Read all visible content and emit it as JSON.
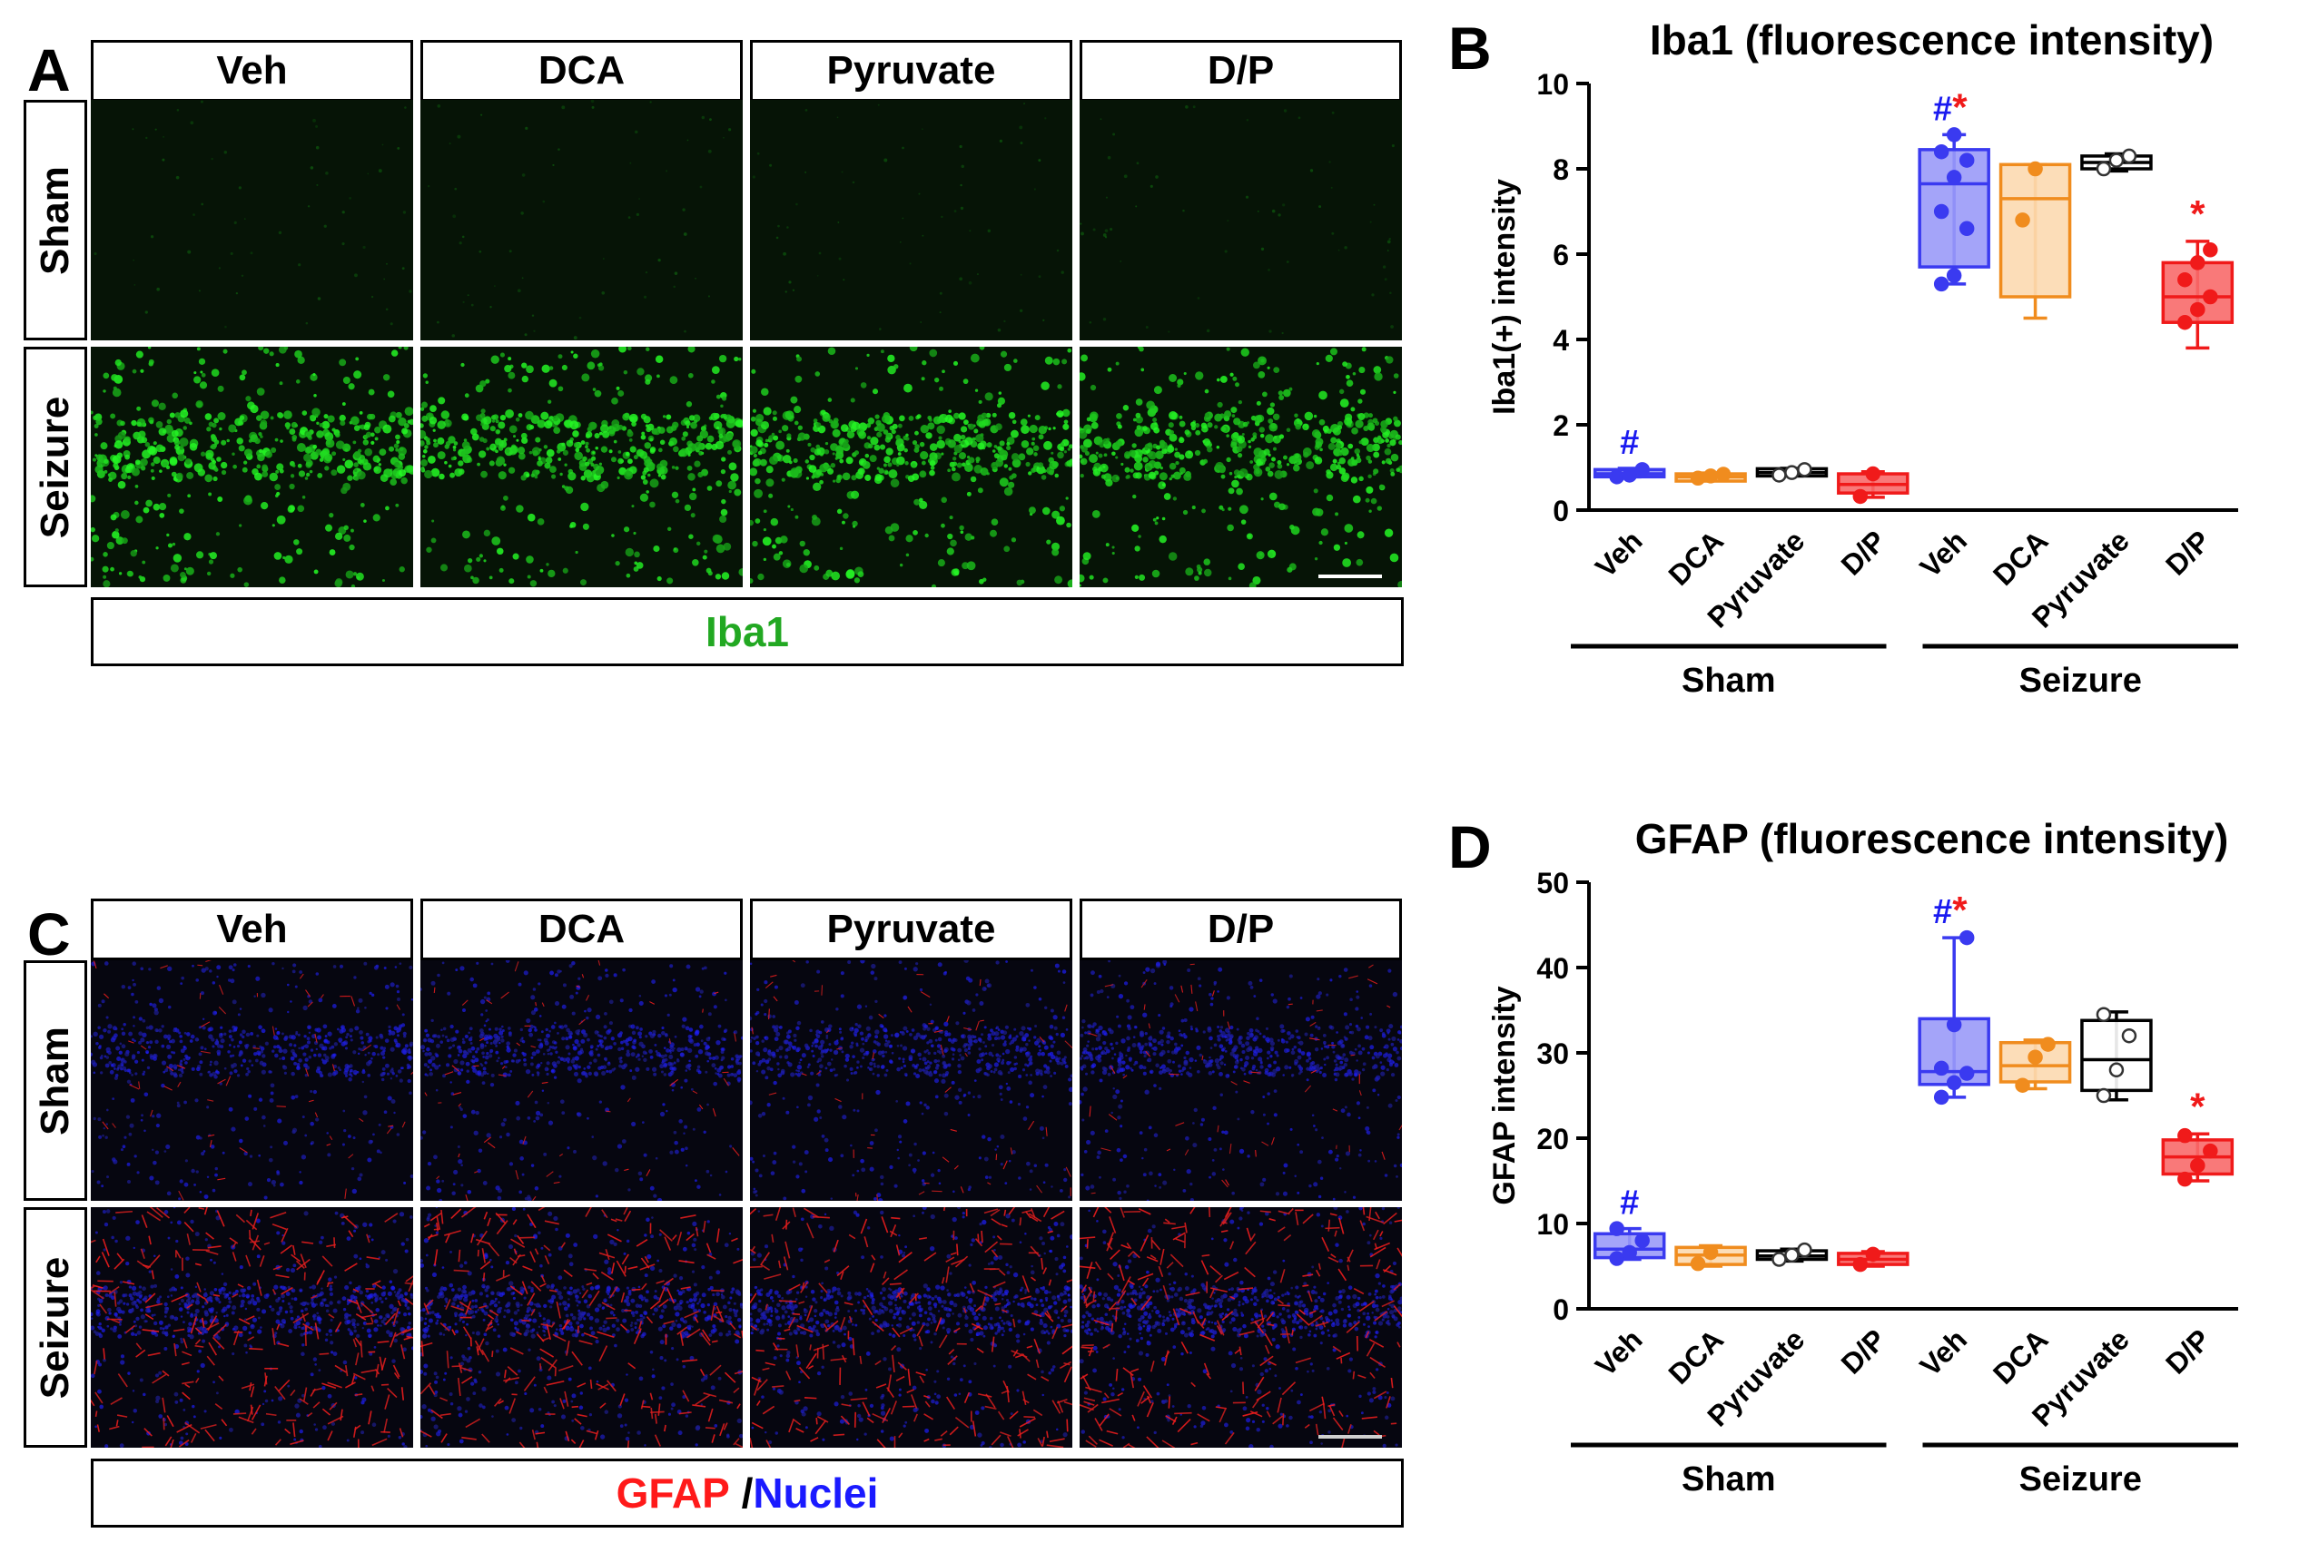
{
  "panel_labels": {
    "a": "A",
    "b": "B",
    "c": "C",
    "d": "D"
  },
  "groups": [
    "Veh",
    "DCA",
    "Pyruvate",
    "D/P"
  ],
  "rows": [
    "Sham",
    "Seizure"
  ],
  "iba1_footer": "Iba1",
  "gfap_footer": {
    "marker": "GFAP",
    "separator": " /",
    "counterstain": "Nuclei"
  },
  "colors": {
    "iba1_stain": "#22c422",
    "gfap_stain": "#ff2a2a",
    "nuclei_stain": "#2a2aff",
    "veh": "#3a3af0",
    "dca": "#f08c1e",
    "pyruvate": "#000000",
    "dp": "#f01a1a",
    "hash_color": "#1a1af0",
    "star_color": "#f01a1a"
  },
  "chart_data": [
    {
      "type": "box",
      "title": "Iba1  (fluorescence intensity)",
      "ylabel": "Iba1(+) intensity",
      "ylim": [
        0,
        10
      ],
      "yticks": [
        0,
        2,
        4,
        6,
        8,
        10
      ],
      "categories": [
        "Veh",
        "DCA",
        "Pyruvate",
        "D/P",
        "Veh",
        "DCA",
        "Pyruvate",
        "D/P"
      ],
      "group_labels": [
        "Sham",
        "Seizure"
      ],
      "boxes": [
        {
          "series": "veh",
          "min": 0.78,
          "q1": 0.78,
          "median": 0.85,
          "q3": 0.95,
          "max": 0.98,
          "points": [
            0.78,
            0.82,
            0.95
          ]
        },
        {
          "series": "dca",
          "min": 0.72,
          "q1": 0.72,
          "median": 0.78,
          "q3": 0.85,
          "max": 0.87,
          "points": [
            0.75,
            0.8,
            0.84
          ]
        },
        {
          "series": "pyruvate",
          "min": 0.8,
          "q1": 0.8,
          "median": 0.88,
          "q3": 0.97,
          "max": 0.98,
          "points": [
            0.82,
            0.88,
            0.95
          ]
        },
        {
          "series": "dp",
          "min": 0.3,
          "q1": 0.4,
          "median": 0.6,
          "q3": 0.85,
          "max": 0.9,
          "points": [
            0.32,
            0.85
          ]
        },
        {
          "series": "veh",
          "min": 5.3,
          "q1": 5.7,
          "median": 7.65,
          "q3": 8.45,
          "max": 8.8,
          "points": [
            5.3,
            5.5,
            6.6,
            7.0,
            7.8,
            8.2,
            8.4,
            8.8
          ]
        },
        {
          "series": "dca",
          "min": 4.5,
          "q1": 5.0,
          "median": 7.3,
          "q3": 8.1,
          "max": 8.1,
          "points": [
            6.8,
            8.0
          ]
        },
        {
          "series": "pyruvate",
          "min": 7.95,
          "q1": 8.0,
          "median": 8.15,
          "q3": 8.3,
          "max": 8.35,
          "points": [
            8.0,
            8.2,
            8.3
          ]
        },
        {
          "series": "dp",
          "min": 3.8,
          "q1": 4.4,
          "median": 5.0,
          "q3": 5.8,
          "max": 6.3,
          "points": [
            4.4,
            4.7,
            5.0,
            5.4,
            5.8,
            6.1
          ]
        }
      ],
      "annotations": [
        {
          "box": 0,
          "hash": "#",
          "star": ""
        },
        {
          "box": 4,
          "hash": "#",
          "star": "*"
        },
        {
          "box": 7,
          "hash": "",
          "star": "*"
        }
      ]
    },
    {
      "type": "box",
      "title": "GFAP  (fluorescence intensity)",
      "ylabel": "GFAP intensity",
      "ylim": [
        0,
        50
      ],
      "yticks": [
        0,
        10,
        20,
        30,
        40,
        50
      ],
      "categories": [
        "Veh",
        "DCA",
        "Pyruvate",
        "D/P",
        "Veh",
        "DCA",
        "Pyruvate",
        "D/P"
      ],
      "group_labels": [
        "Sham",
        "Seizure"
      ],
      "boxes": [
        {
          "series": "veh",
          "min": 5.8,
          "q1": 6.0,
          "median": 7.0,
          "q3": 8.8,
          "max": 9.4,
          "points": [
            5.9,
            6.6,
            8.0,
            9.4
          ]
        },
        {
          "series": "dca",
          "min": 5.0,
          "q1": 5.2,
          "median": 6.3,
          "q3": 7.2,
          "max": 7.4,
          "points": [
            5.3,
            6.6
          ]
        },
        {
          "series": "pyruvate",
          "min": 5.6,
          "q1": 5.8,
          "median": 6.2,
          "q3": 6.8,
          "max": 7.0,
          "points": [
            5.8,
            6.3,
            6.9
          ]
        },
        {
          "series": "dp",
          "min": 5.0,
          "q1": 5.2,
          "median": 5.8,
          "q3": 6.5,
          "max": 6.7,
          "points": [
            5.2,
            6.4
          ]
        },
        {
          "series": "veh",
          "min": 24.8,
          "q1": 26.3,
          "median": 27.8,
          "q3": 34.0,
          "max": 43.5,
          "points": [
            24.8,
            26.5,
            27.6,
            28.2,
            33.3,
            43.5
          ]
        },
        {
          "series": "dca",
          "min": 25.8,
          "q1": 26.6,
          "median": 28.5,
          "q3": 31.2,
          "max": 31.5,
          "points": [
            26.2,
            29.5,
            31.0
          ]
        },
        {
          "series": "pyruvate",
          "min": 24.5,
          "q1": 25.6,
          "median": 29.2,
          "q3": 33.8,
          "max": 34.8,
          "points": [
            25.0,
            28.0,
            32.0,
            34.5
          ]
        },
        {
          "series": "dp",
          "min": 15.0,
          "q1": 15.8,
          "median": 17.8,
          "q3": 19.8,
          "max": 20.5,
          "points": [
            15.2,
            16.8,
            18.5,
            20.3
          ]
        }
      ],
      "annotations": [
        {
          "box": 0,
          "hash": "#",
          "star": ""
        },
        {
          "box": 4,
          "hash": "#",
          "star": "*"
        },
        {
          "box": 7,
          "hash": "",
          "star": "*"
        }
      ]
    }
  ]
}
